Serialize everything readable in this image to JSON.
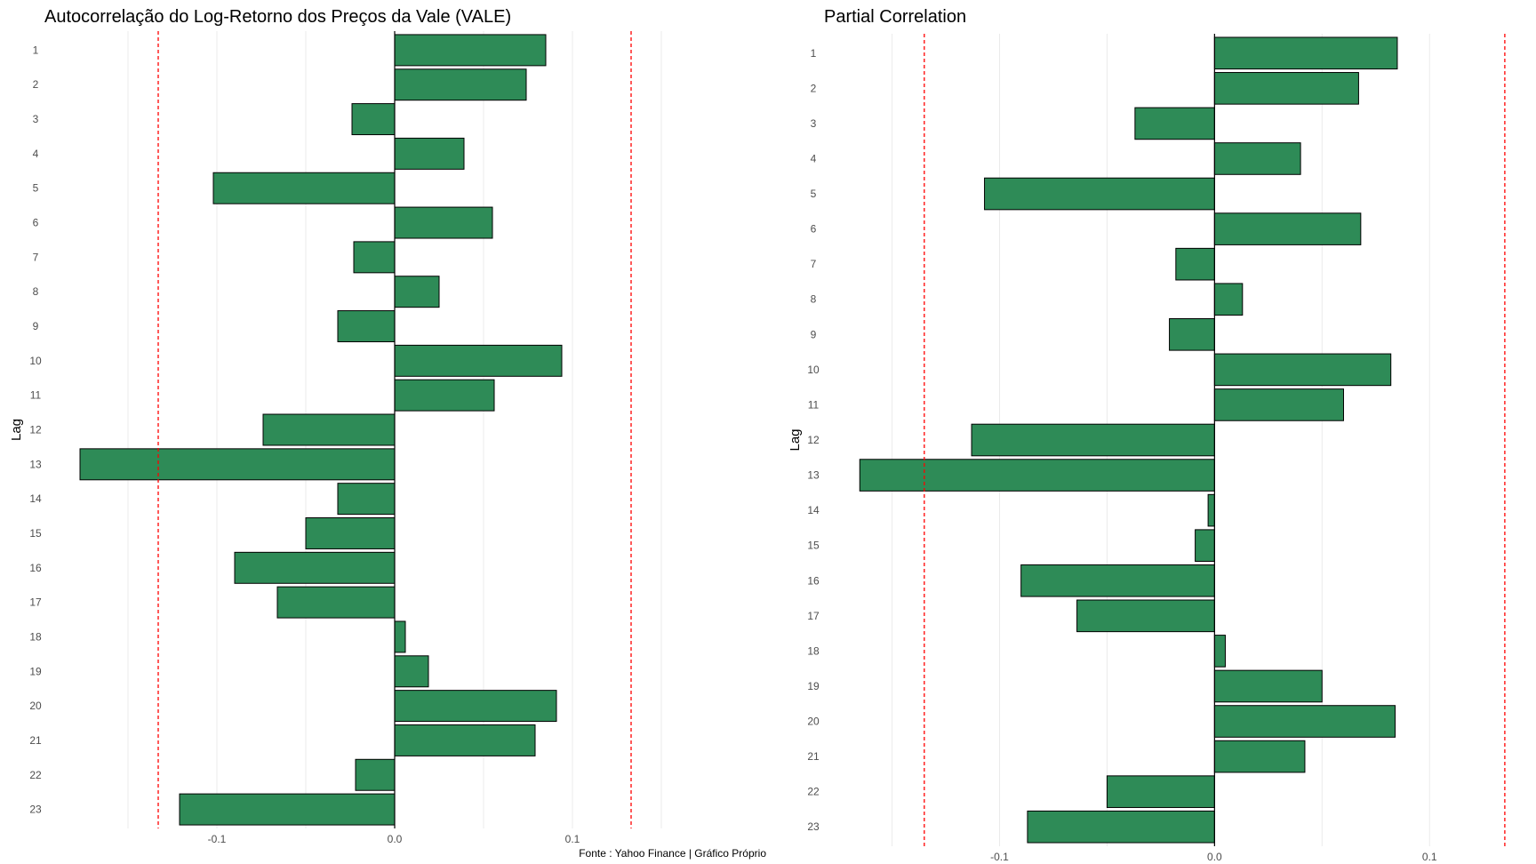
{
  "colors": {
    "bar_fill": "#2e8b57",
    "bar_stroke": "#000000",
    "threshold_line": "#ff0000",
    "grid": "#ebebeb",
    "zero_line": "#000000"
  },
  "caption": "Fonte : Yahoo Finance | Gráfico Próprio",
  "chart_data": [
    {
      "type": "bar",
      "orientation": "horizontal",
      "title": "Autocorrelação do Log-Retorno dos Preços da Vale (VALE)",
      "xlabel": "",
      "ylabel": "Lag",
      "categories": [
        "1",
        "2",
        "3",
        "4",
        "5",
        "6",
        "7",
        "8",
        "9",
        "10",
        "11",
        "12",
        "13",
        "14",
        "15",
        "16",
        "17",
        "18",
        "19",
        "20",
        "21",
        "22",
        "23"
      ],
      "values": [
        0.085,
        0.074,
        -0.024,
        0.039,
        -0.102,
        0.055,
        -0.023,
        0.025,
        -0.032,
        0.094,
        0.056,
        -0.074,
        -0.177,
        -0.032,
        -0.05,
        -0.09,
        -0.066,
        0.006,
        0.019,
        0.091,
        0.079,
        -0.022,
        -0.121
      ],
      "confidence_bounds": [
        -0.133,
        0.133
      ],
      "xlim": [
        -0.179,
        0.158
      ],
      "xticks": [
        -0.1,
        0.0,
        0.1
      ],
      "xtick_labels": [
        "-0.1",
        "0.0",
        "0.1"
      ],
      "grid": true
    },
    {
      "type": "bar",
      "orientation": "horizontal",
      "title": "Partial Correlation",
      "xlabel": "",
      "ylabel": "Lag",
      "categories": [
        "1",
        "2",
        "3",
        "4",
        "5",
        "6",
        "7",
        "8",
        "9",
        "10",
        "11",
        "12",
        "13",
        "14",
        "15",
        "16",
        "17",
        "18",
        "19",
        "20",
        "21",
        "22",
        "23"
      ],
      "values": [
        0.085,
        0.067,
        -0.037,
        0.04,
        -0.107,
        0.068,
        -0.018,
        0.013,
        -0.021,
        0.082,
        0.06,
        -0.113,
        -0.165,
        -0.003,
        -0.009,
        -0.09,
        -0.064,
        0.005,
        0.05,
        0.084,
        0.042,
        -0.05,
        -0.087
      ],
      "confidence_bounds": [
        -0.135,
        0.135
      ],
      "xlim": [
        -0.168,
        0.14
      ],
      "xticks": [
        -0.1,
        0.0,
        0.1
      ],
      "xtick_labels": [
        "-0.1",
        "0.0",
        "0.1"
      ],
      "grid": true
    }
  ]
}
